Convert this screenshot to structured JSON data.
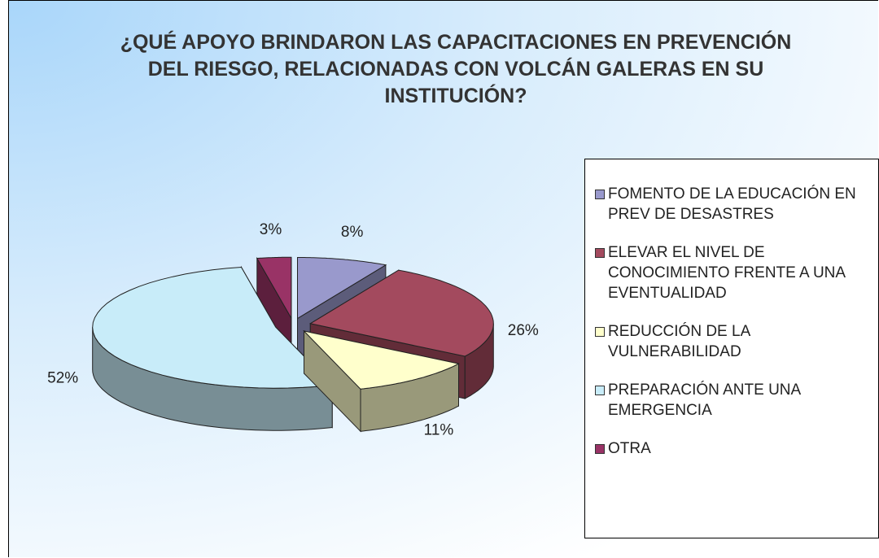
{
  "chart_data": {
    "type": "pie",
    "title": "¿QUÉ APOYO BRINDARON LAS CAPACITACIONES EN PREVENCIÓN DEL RIESGO, RELACIONADAS CON VOLCÁN GALERAS EN SU INSTITUCIÓN?",
    "categories": [
      "FOMENTO DE LA EDUCACIÓN EN PREV DE DESASTRES",
      "ELEVAR EL NIVEL DE CONOCIMIENTO FRENTE A UNA EVENTUALIDAD",
      "REDUCCIÓN DE LA VULNERABILIDAD",
      "PREPARACIÓN ANTE UNA EMERGENCIA",
      "OTRA"
    ],
    "values": [
      8,
      26,
      11,
      52,
      3
    ],
    "value_labels": [
      "8%",
      "26%",
      "11%",
      "52%",
      "3%"
    ],
    "colors": [
      "#9999cc",
      "#a34a5e",
      "#ffffcc",
      "#c8ecf9",
      "#993366"
    ],
    "legend": "right"
  }
}
